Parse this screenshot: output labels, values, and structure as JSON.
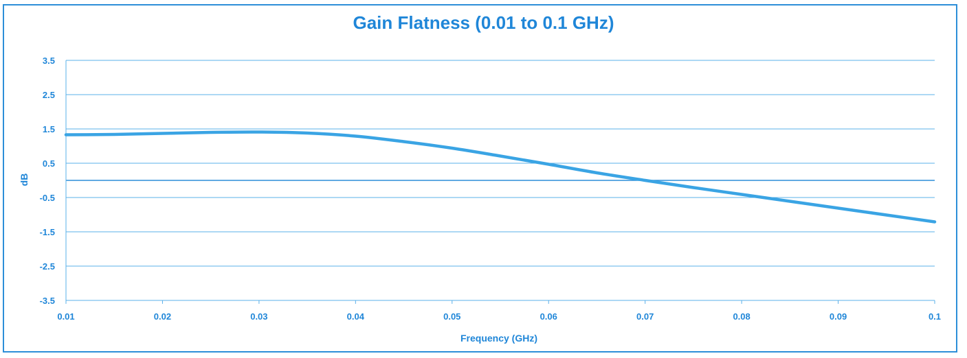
{
  "chart_data": {
    "type": "line",
    "title": "Gain Flatness (0.01 to 0.1 GHz)",
    "xlabel": "Frequency (GHz)",
    "ylabel": "dB",
    "xlim": [
      0.01,
      0.1
    ],
    "ylim": [
      -3.5,
      3.5
    ],
    "x_ticks": [
      "0.01",
      "0.02",
      "0.03",
      "0.04",
      "0.05",
      "0.06",
      "0.07",
      "0.08",
      "0.09",
      "0.1"
    ],
    "y_ticks": [
      "3.5",
      "2.5",
      "1.5",
      "0.5",
      "-0.5",
      "-1.5",
      "-2.5",
      "-3.5"
    ],
    "grid": true,
    "series_color": "#3aa4e4",
    "accent_color": "#1f86d8",
    "series": [
      {
        "x": [
          0.01,
          0.015,
          0.02,
          0.025,
          0.03,
          0.035,
          0.04,
          0.045,
          0.05,
          0.055,
          0.06,
          0.065,
          0.07,
          0.075,
          0.08,
          0.085,
          0.09,
          0.095,
          0.1
        ],
        "values": [
          1.33,
          1.34,
          1.37,
          1.4,
          1.41,
          1.38,
          1.29,
          1.13,
          0.94,
          0.71,
          0.47,
          0.22,
          0.0,
          -0.21,
          -0.41,
          -0.61,
          -0.81,
          -1.01,
          -1.21
        ]
      }
    ]
  }
}
